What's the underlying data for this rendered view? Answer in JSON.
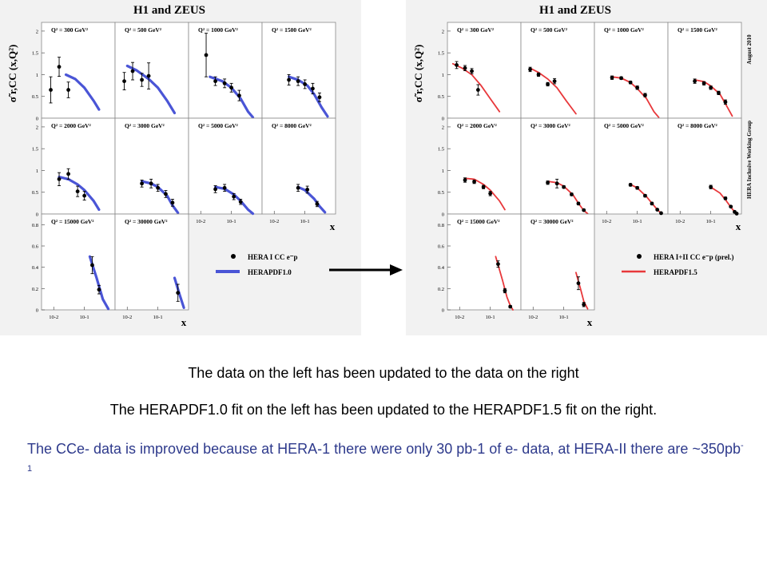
{
  "slide": {
    "caption_1": "The data on the left has been updated to the data on the right",
    "caption_2": "The HERAPDF1.0 fit on the left has been updated to the HERAPDF1.5 fit on the right.",
    "caption_3_main": "The CCe- data is improved because at HERA-1 there were only 30 pb-1 of e- data, at HERA-II there are ~350pb",
    "caption_3_sup": "-1",
    "caption_3_color": "#2e3a8c"
  },
  "chart_data": [
    {
      "type": "scatter",
      "title": "H1 and ZEUS",
      "ylabel": "σ̃ r,CC (x,Q²)",
      "xlabel": "x",
      "x_scale": "log",
      "x_ticks": [
        "10-2",
        "10-1"
      ],
      "y_ticks_rows_1_2": [
        "0",
        "0.5",
        "1",
        "1.5",
        "2"
      ],
      "y_ticks_row_3": [
        "0",
        "0.2",
        "0.4",
        "0.6",
        "0.8"
      ],
      "ylim_rows_1_2": [
        0,
        2.2
      ],
      "ylim_row_3": [
        0,
        0.9
      ],
      "xlim": [
        0.004,
        1
      ],
      "legend": {
        "data_label": "HERA I CC e⁻p",
        "fit_label": "HERAPDF1.0",
        "position": "bottom-right"
      },
      "fit_color": "#4a55d6",
      "panels": [
        {
          "label": "Q² = 300 GeV²",
          "points": [
            [
              0.008,
              0.65,
              0.3
            ],
            [
              0.015,
              1.18,
              0.22
            ],
            [
              0.03,
              0.65,
              0.18
            ]
          ],
          "fit": [
            [
              0.025,
              1.0
            ],
            [
              0.05,
              0.9
            ],
            [
              0.1,
              0.7
            ],
            [
              0.2,
              0.4
            ],
            [
              0.3,
              0.2
            ]
          ]
        },
        {
          "label": "Q² = 500 GeV²",
          "points": [
            [
              0.008,
              0.85,
              0.2
            ],
            [
              0.015,
              1.08,
              0.2
            ],
            [
              0.03,
              0.88,
              0.15
            ],
            [
              0.05,
              0.97,
              0.3
            ]
          ],
          "fit": [
            [
              0.01,
              1.2
            ],
            [
              0.02,
              1.1
            ],
            [
              0.05,
              0.9
            ],
            [
              0.1,
              0.7
            ],
            [
              0.2,
              0.4
            ],
            [
              0.35,
              0.12
            ]
          ]
        },
        {
          "label": "Q² = 1000 GeV²",
          "points": [
            [
              0.015,
              1.45,
              0.5
            ],
            [
              0.03,
              0.85,
              0.1
            ],
            [
              0.06,
              0.8,
              0.1
            ],
            [
              0.1,
              0.7,
              0.1
            ],
            [
              0.18,
              0.52,
              0.12
            ]
          ],
          "fit": [
            [
              0.02,
              0.95
            ],
            [
              0.05,
              0.85
            ],
            [
              0.1,
              0.7
            ],
            [
              0.2,
              0.45
            ],
            [
              0.35,
              0.15
            ],
            [
              0.5,
              0.02
            ]
          ]
        },
        {
          "label": "Q² = 1500 GeV²",
          "points": [
            [
              0.03,
              0.88,
              0.12
            ],
            [
              0.06,
              0.85,
              0.1
            ],
            [
              0.1,
              0.78,
              0.1
            ],
            [
              0.18,
              0.68,
              0.12
            ],
            [
              0.3,
              0.48,
              0.1
            ]
          ],
          "fit": [
            [
              0.03,
              0.95
            ],
            [
              0.06,
              0.88
            ],
            [
              0.12,
              0.75
            ],
            [
              0.2,
              0.55
            ],
            [
              0.35,
              0.25
            ],
            [
              0.55,
              0.04
            ]
          ]
        },
        {
          "label": "Q² = 2000 GeV²",
          "points": [
            [
              0.015,
              0.8,
              0.15
            ],
            [
              0.03,
              0.92,
              0.12
            ],
            [
              0.06,
              0.52,
              0.12
            ],
            [
              0.1,
              0.42,
              0.1
            ]
          ],
          "fit": [
            [
              0.015,
              0.85
            ],
            [
              0.03,
              0.8
            ],
            [
              0.06,
              0.68
            ],
            [
              0.1,
              0.55
            ],
            [
              0.2,
              0.3
            ],
            [
              0.3,
              0.1
            ]
          ]
        },
        {
          "label": "Q² = 3000 GeV²",
          "points": [
            [
              0.03,
              0.7,
              0.08
            ],
            [
              0.06,
              0.7,
              0.1
            ],
            [
              0.1,
              0.6,
              0.08
            ],
            [
              0.18,
              0.46,
              0.08
            ],
            [
              0.3,
              0.26,
              0.08
            ]
          ],
          "fit": [
            [
              0.03,
              0.75
            ],
            [
              0.06,
              0.7
            ],
            [
              0.1,
              0.62
            ],
            [
              0.2,
              0.42
            ],
            [
              0.3,
              0.2
            ],
            [
              0.45,
              0.03
            ]
          ]
        },
        {
          "label": "Q² = 5000 GeV²",
          "points": [
            [
              0.03,
              0.57,
              0.08
            ],
            [
              0.06,
              0.6,
              0.08
            ],
            [
              0.12,
              0.4,
              0.07
            ],
            [
              0.2,
              0.28,
              0.06
            ]
          ],
          "fit": [
            [
              0.03,
              0.62
            ],
            [
              0.06,
              0.58
            ],
            [
              0.12,
              0.45
            ],
            [
              0.2,
              0.3
            ],
            [
              0.35,
              0.1
            ],
            [
              0.5,
              0.01
            ]
          ]
        },
        {
          "label": "Q² = 8000 GeV²",
          "points": [
            [
              0.06,
              0.6,
              0.08
            ],
            [
              0.12,
              0.56,
              0.08
            ],
            [
              0.25,
              0.23,
              0.06
            ]
          ],
          "fit": [
            [
              0.06,
              0.62
            ],
            [
              0.1,
              0.55
            ],
            [
              0.2,
              0.35
            ],
            [
              0.3,
              0.18
            ],
            [
              0.45,
              0.04
            ]
          ]
        },
        {
          "label": "Q² = 15000 GeV²",
          "points": [
            [
              0.18,
              0.42,
              0.08
            ],
            [
              0.3,
              0.19,
              0.04
            ]
          ],
          "fit": [
            [
              0.15,
              0.5
            ],
            [
              0.25,
              0.3
            ],
            [
              0.4,
              0.1
            ],
            [
              0.6,
              0.01
            ]
          ]
        },
        {
          "label": "Q² = 30000 GeV²",
          "points": [
            [
              0.45,
              0.16,
              0.08
            ]
          ],
          "fit": [
            [
              0.35,
              0.3
            ],
            [
              0.5,
              0.15
            ],
            [
              0.7,
              0.02
            ]
          ]
        }
      ]
    },
    {
      "type": "scatter",
      "title": "H1 and ZEUS",
      "ylabel": "σ̃ r,CC (x,Q²)",
      "xlabel": "x",
      "x_scale": "log",
      "x_ticks": [
        "10-2",
        "10-1"
      ],
      "y_ticks_rows_1_2": [
        "0",
        "0.5",
        "1",
        "1.5",
        "2"
      ],
      "y_ticks_row_3": [
        "0",
        "0.2",
        "0.4",
        "0.6",
        "0.8"
      ],
      "ylim_rows_1_2": [
        0,
        2.2
      ],
      "ylim_row_3": [
        0,
        0.9
      ],
      "xlim": [
        0.004,
        1
      ],
      "side_labels": [
        "August 2010",
        "HERA Inclusive Working Group"
      ],
      "legend": {
        "data_label": "HERA I+II CC e⁻p (prel.)",
        "fit_label": "HERAPDF1.5",
        "position": "bottom-right"
      },
      "fit_color": "#e8383b",
      "panels": [
        {
          "label": "Q² = 300 GeV²",
          "points": [
            [
              0.008,
              1.22,
              0.08
            ],
            [
              0.015,
              1.15,
              0.06
            ],
            [
              0.025,
              1.08,
              0.06
            ],
            [
              0.04,
              0.65,
              0.12
            ]
          ],
          "fit": [
            [
              0.006,
              1.25
            ],
            [
              0.012,
              1.15
            ],
            [
              0.025,
              1.0
            ],
            [
              0.05,
              0.75
            ],
            [
              0.1,
              0.45
            ],
            [
              0.2,
              0.15
            ]
          ]
        },
        {
          "label": "Q² = 500 GeV²",
          "points": [
            [
              0.008,
              1.12,
              0.05
            ],
            [
              0.015,
              1.0,
              0.04
            ],
            [
              0.03,
              0.78,
              0.04
            ],
            [
              0.05,
              0.85,
              0.06
            ]
          ],
          "fit": [
            [
              0.008,
              1.15
            ],
            [
              0.015,
              1.05
            ],
            [
              0.03,
              0.9
            ],
            [
              0.06,
              0.7
            ],
            [
              0.12,
              0.4
            ],
            [
              0.25,
              0.1
            ]
          ]
        },
        {
          "label": "Q² = 1000 GeV²",
          "points": [
            [
              0.015,
              0.93,
              0.04
            ],
            [
              0.03,
              0.92,
              0.03
            ],
            [
              0.06,
              0.82,
              0.03
            ],
            [
              0.1,
              0.7,
              0.04
            ],
            [
              0.18,
              0.53,
              0.04
            ]
          ],
          "fit": [
            [
              0.015,
              0.95
            ],
            [
              0.03,
              0.92
            ],
            [
              0.06,
              0.82
            ],
            [
              0.1,
              0.68
            ],
            [
              0.2,
              0.45
            ],
            [
              0.35,
              0.15
            ],
            [
              0.5,
              0.02
            ]
          ]
        },
        {
          "label": "Q² = 1500 GeV²",
          "points": [
            [
              0.03,
              0.85,
              0.05
            ],
            [
              0.06,
              0.8,
              0.04
            ],
            [
              0.1,
              0.7,
              0.04
            ],
            [
              0.18,
              0.58,
              0.04
            ],
            [
              0.3,
              0.37,
              0.05
            ]
          ],
          "fit": [
            [
              0.03,
              0.88
            ],
            [
              0.06,
              0.84
            ],
            [
              0.1,
              0.74
            ],
            [
              0.2,
              0.55
            ],
            [
              0.35,
              0.25
            ],
            [
              0.5,
              0.05
            ]
          ]
        },
        {
          "label": "Q² = 2000 GeV²",
          "points": [
            [
              0.015,
              0.78,
              0.05
            ],
            [
              0.03,
              0.74,
              0.04
            ],
            [
              0.06,
              0.62,
              0.04
            ],
            [
              0.1,
              0.47,
              0.05
            ]
          ],
          "fit": [
            [
              0.015,
              0.82
            ],
            [
              0.03,
              0.8
            ],
            [
              0.06,
              0.68
            ],
            [
              0.1,
              0.55
            ],
            [
              0.2,
              0.3
            ],
            [
              0.3,
              0.1
            ]
          ]
        },
        {
          "label": "Q² = 3000 GeV²",
          "points": [
            [
              0.03,
              0.72,
              0.04
            ],
            [
              0.06,
              0.7,
              0.1
            ],
            [
              0.1,
              0.62,
              0.03
            ],
            [
              0.18,
              0.45,
              0.03
            ],
            [
              0.3,
              0.24,
              0.03
            ],
            [
              0.45,
              0.09,
              0.02
            ]
          ],
          "fit": [
            [
              0.03,
              0.75
            ],
            [
              0.06,
              0.72
            ],
            [
              0.1,
              0.64
            ],
            [
              0.2,
              0.44
            ],
            [
              0.3,
              0.25
            ],
            [
              0.45,
              0.08
            ],
            [
              0.6,
              0.01
            ]
          ]
        },
        {
          "label": "Q² = 5000 GeV²",
          "points": [
            [
              0.06,
              0.67,
              0.03
            ],
            [
              0.1,
              0.6,
              0.03
            ],
            [
              0.18,
              0.42,
              0.03
            ],
            [
              0.3,
              0.24,
              0.03
            ],
            [
              0.45,
              0.1,
              0.02
            ],
            [
              0.6,
              0.02,
              0.01
            ]
          ],
          "fit": [
            [
              0.06,
              0.68
            ],
            [
              0.1,
              0.6
            ],
            [
              0.2,
              0.4
            ],
            [
              0.3,
              0.25
            ],
            [
              0.45,
              0.1
            ],
            [
              0.6,
              0.02
            ]
          ]
        },
        {
          "label": "Q² = 8000 GeV²",
          "points": [
            [
              0.1,
              0.62,
              0.04
            ],
            [
              0.3,
              0.36,
              0.03
            ],
            [
              0.45,
              0.17,
              0.02
            ],
            [
              0.6,
              0.05,
              0.02
            ],
            [
              0.7,
              0.01,
              0.01
            ]
          ],
          "fit": [
            [
              0.1,
              0.62
            ],
            [
              0.2,
              0.48
            ],
            [
              0.3,
              0.33
            ],
            [
              0.45,
              0.16
            ],
            [
              0.6,
              0.05
            ],
            [
              0.75,
              0.0
            ]
          ]
        },
        {
          "label": "Q² = 15000 GeV²",
          "points": [
            [
              0.18,
              0.43,
              0.03
            ],
            [
              0.3,
              0.18,
              0.02
            ],
            [
              0.45,
              0.03,
              0.01
            ]
          ],
          "fit": [
            [
              0.15,
              0.5
            ],
            [
              0.25,
              0.28
            ],
            [
              0.35,
              0.12
            ],
            [
              0.45,
              0.04
            ],
            [
              0.55,
              0.0
            ]
          ]
        },
        {
          "label": "Q² = 30000 GeV²",
          "points": [
            [
              0.3,
              0.25,
              0.06
            ],
            [
              0.45,
              0.05,
              0.02
            ]
          ],
          "fit": [
            [
              0.25,
              0.35
            ],
            [
              0.35,
              0.2
            ],
            [
              0.45,
              0.08
            ],
            [
              0.6,
              0.01
            ]
          ]
        }
      ]
    }
  ]
}
